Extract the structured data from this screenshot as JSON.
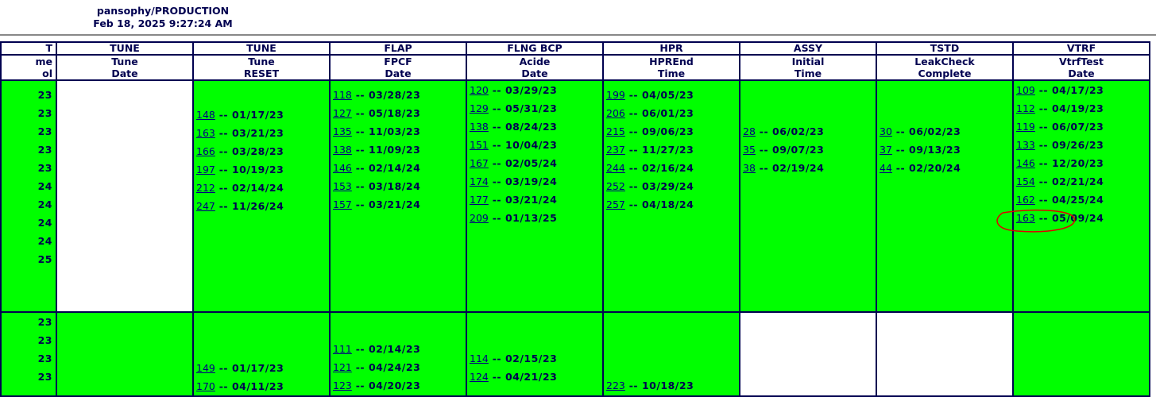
{
  "header": {
    "title": "pansophy/PRODUCTION",
    "timestamp": "Feb 18, 2025 9:27:24 AM"
  },
  "columns": [
    {
      "group": "T",
      "label1": "me",
      "label2": "ol"
    },
    {
      "group": "TUNE",
      "label1": "Tune",
      "label2": "Date"
    },
    {
      "group": "TUNE",
      "label1": "Tune",
      "label2": "RESET"
    },
    {
      "group": "FLAP",
      "label1": "FPCF",
      "label2": "Date"
    },
    {
      "group": "FLNG BCP",
      "label1": "Acide",
      "label2": "Date"
    },
    {
      "group": "HPR",
      "label1": "HPREnd",
      "label2": "Time"
    },
    {
      "group": "ASSY",
      "label1": "Initial",
      "label2": "Time"
    },
    {
      "group": "TSTD",
      "label1": "LeakCheck",
      "label2": "Complete"
    },
    {
      "group": "VTRF",
      "label1": "VtrfTest",
      "label2": "Date"
    }
  ],
  "rows": [
    [
      [
        {
          "id": "",
          "date": "23"
        },
        {
          "id": "",
          "date": "23"
        },
        {
          "id": "",
          "date": "23"
        },
        {
          "id": "",
          "date": "23"
        },
        {
          "id": "",
          "date": "23"
        },
        {
          "id": "",
          "date": "24"
        },
        {
          "id": "",
          "date": "24"
        },
        {
          "id": "",
          "date": "24"
        },
        {
          "id": "",
          "date": "24"
        },
        {
          "id": "",
          "date": "25"
        }
      ],
      [],
      [
        {
          "id": "148",
          "date": "01/17/23"
        },
        {
          "id": "163",
          "date": "03/21/23"
        },
        {
          "id": "166",
          "date": "03/28/23"
        },
        {
          "id": "197",
          "date": "10/19/23"
        },
        {
          "id": "212",
          "date": "02/14/24"
        },
        {
          "id": "247",
          "date": "11/26/24"
        }
      ],
      [
        {
          "id": "118",
          "date": "03/28/23"
        },
        {
          "id": "127",
          "date": "05/18/23"
        },
        {
          "id": "135",
          "date": "11/03/23"
        },
        {
          "id": "138",
          "date": "11/09/23"
        },
        {
          "id": "146",
          "date": "02/14/24"
        },
        {
          "id": "153",
          "date": "03/18/24"
        },
        {
          "id": "157",
          "date": "03/21/24"
        }
      ],
      [
        {
          "id": "120",
          "date": "03/29/23"
        },
        {
          "id": "129",
          "date": "05/31/23"
        },
        {
          "id": "138",
          "date": "08/24/23"
        },
        {
          "id": "151",
          "date": "10/04/23"
        },
        {
          "id": "167",
          "date": "02/05/24"
        },
        {
          "id": "174",
          "date": "03/19/24"
        },
        {
          "id": "177",
          "date": "03/21/24"
        },
        {
          "id": "209",
          "date": "01/13/25"
        }
      ],
      [
        {
          "id": "199",
          "date": "04/05/23"
        },
        {
          "id": "206",
          "date": "06/01/23"
        },
        {
          "id": "215",
          "date": "09/06/23"
        },
        {
          "id": "237",
          "date": "11/27/23"
        },
        {
          "id": "244",
          "date": "02/16/24"
        },
        {
          "id": "252",
          "date": "03/29/24"
        },
        {
          "id": "257",
          "date": "04/18/24"
        }
      ],
      [
        {
          "id": "28",
          "date": "06/02/23"
        },
        {
          "id": "35",
          "date": "09/07/23"
        },
        {
          "id": "38",
          "date": "02/19/24"
        }
      ],
      [
        {
          "id": "30",
          "date": "06/02/23"
        },
        {
          "id": "37",
          "date": "09/13/23"
        },
        {
          "id": "44",
          "date": "02/20/24"
        }
      ],
      [
        {
          "id": "109",
          "date": "04/17/23"
        },
        {
          "id": "112",
          "date": "04/19/23"
        },
        {
          "id": "119",
          "date": "06/07/23"
        },
        {
          "id": "133",
          "date": "09/26/23"
        },
        {
          "id": "146",
          "date": "12/20/23"
        },
        {
          "id": "154",
          "date": "02/21/24"
        },
        {
          "id": "162",
          "date": "04/25/24"
        },
        {
          "id": "163",
          "date": "05/09/24"
        }
      ]
    ],
    [
      [
        {
          "id": "",
          "date": "23"
        },
        {
          "id": "",
          "date": "23"
        },
        {
          "id": "",
          "date": "23"
        },
        {
          "id": "",
          "date": "23"
        }
      ],
      [],
      [
        {
          "id": "149",
          "date": "01/17/23"
        },
        {
          "id": "170",
          "date": "04/11/23"
        }
      ],
      [
        {
          "id": "111",
          "date": "02/14/23"
        },
        {
          "id": "121",
          "date": "04/24/23"
        },
        {
          "id": "123",
          "date": "04/20/23"
        }
      ],
      [
        {
          "id": "114",
          "date": "02/15/23"
        },
        {
          "id": "124",
          "date": "04/21/23"
        }
      ],
      [
        {
          "id": "223",
          "date": "10/18/23"
        }
      ],
      [],
      [],
      []
    ]
  ],
  "colors": {
    "complete": "#00ff00",
    "empty": "#ffffff",
    "border": "#000050",
    "annotation": "#e00000"
  }
}
